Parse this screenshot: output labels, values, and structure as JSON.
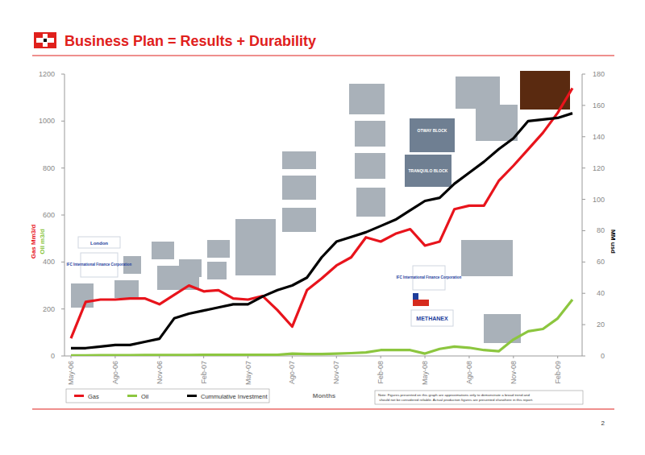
{
  "chart_data": {
    "type": "line",
    "title": "Business Plan = Results + Durability",
    "xlabel": "Months",
    "ylabels": [
      {
        "text": "Gas Mm3/d",
        "color": "#e8141c"
      },
      {
        "text": "Oil m3/d",
        "color": "#8cc63f"
      }
    ],
    "y2label": "MM usd",
    "categories": [
      "May-06",
      null,
      null,
      "Ago-06",
      null,
      null,
      "Nov-06",
      null,
      null,
      "Feb-07",
      null,
      null,
      "May-07",
      null,
      null,
      "Ago-07",
      null,
      null,
      "Nov-07",
      null,
      null,
      "Feb-08",
      null,
      null,
      "May-08",
      null,
      null,
      "Ago-08",
      null,
      null,
      "Nov-08",
      null,
      null,
      "Feb-09",
      null
    ],
    "series": [
      {
        "name": "Gas",
        "color": "#e8141c",
        "values": [
          75,
          230,
          240,
          240,
          245,
          245,
          220,
          260,
          300,
          275,
          280,
          245,
          240,
          255,
          195,
          125,
          280,
          330,
          385,
          420,
          505,
          487,
          520,
          540,
          470,
          487,
          625,
          640,
          640,
          745,
          810,
          880,
          950,
          1035,
          1140
        ]
      },
      {
        "name": "Oil",
        "color": "#8cc63f",
        "values": [
          2,
          2,
          3,
          3,
          3,
          4,
          4,
          4,
          4,
          5,
          5,
          5,
          5,
          5,
          5,
          10,
          8,
          8,
          10,
          12,
          15,
          25,
          25,
          25,
          10,
          30,
          40,
          35,
          25,
          20,
          70,
          105,
          115,
          160,
          240
        ]
      },
      {
        "name": "Cummulative Investment",
        "color": "#000000",
        "axis": "y2",
        "values": [
          5,
          5,
          6,
          7,
          7,
          9,
          11,
          24,
          27,
          29,
          31,
          33,
          33,
          38,
          42,
          45,
          50,
          63,
          73,
          76,
          79,
          83,
          87,
          93,
          99,
          101,
          110,
          117,
          124,
          132,
          139,
          150,
          151,
          152,
          155
        ]
      }
    ],
    "ylim": [
      0,
      1200
    ],
    "yticks": [
      0,
      200,
      400,
      600,
      800,
      1000,
      1200
    ],
    "y2lim": [
      0,
      180
    ],
    "y2ticks": [
      0,
      20,
      40,
      60,
      80,
      100,
      120,
      140,
      160,
      180
    ],
    "grid": false,
    "legend": "bottom",
    "annotations": [
      "London",
      "IFC International Finance Corporation",
      "OTWAY BLOCK",
      "TRANQUILO BLOCK",
      "IFC International Finance Corporation",
      "METHANEX"
    ],
    "note": "Note: Figures presented on this graph are approximations only to demonstrate a broad trend and should not be considered reliable. Actual production figures are presented elsewhere in this report.",
    "page_number": 2
  }
}
